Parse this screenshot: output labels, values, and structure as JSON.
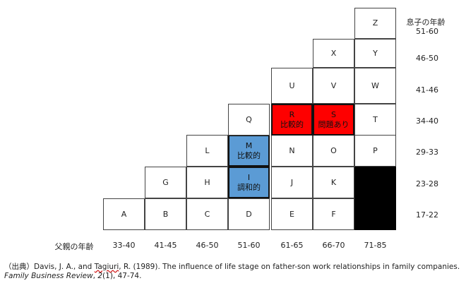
{
  "figure": {
    "corner_label": "息子の年齢",
    "son_age_rows": [
      "51-60",
      "46-50",
      "41-46",
      "34-40",
      "29-33",
      "23-28",
      "17-22"
    ],
    "father_label": "父親の年齢",
    "father_age_cols": [
      "33-40",
      "41-45",
      "46-50",
      "51-60",
      "61-65",
      "66-70",
      "71-85"
    ],
    "cells": {
      "A": {
        "letter": "A"
      },
      "B": {
        "letter": "B"
      },
      "C": {
        "letter": "C"
      },
      "D": {
        "letter": "D"
      },
      "E": {
        "letter": "E"
      },
      "F": {
        "letter": "F"
      },
      "G": {
        "letter": "G"
      },
      "H": {
        "letter": "H"
      },
      "I": {
        "letter": "I",
        "sub": "調和的",
        "color": "#5b9bd5"
      },
      "J": {
        "letter": "J"
      },
      "K": {
        "letter": "K"
      },
      "L": {
        "letter": "L"
      },
      "M": {
        "letter": "M",
        "sub": "比較的",
        "color": "#5b9bd5"
      },
      "N": {
        "letter": "N"
      },
      "O": {
        "letter": "O"
      },
      "P": {
        "letter": "P"
      },
      "Q": {
        "letter": "Q"
      },
      "R": {
        "letter": "R",
        "sub": "比較的",
        "color": "#fe0000"
      },
      "S": {
        "letter": "S",
        "sub": "問題あり",
        "color": "#fe0000"
      },
      "T": {
        "letter": "T"
      },
      "U": {
        "letter": "U"
      },
      "V": {
        "letter": "V"
      },
      "W": {
        "letter": "W"
      },
      "X": {
        "letter": "X"
      },
      "Y": {
        "letter": "Y"
      },
      "Z": {
        "letter": "Z"
      }
    },
    "shaded_color": "#000000"
  },
  "source": {
    "prefix": "（出典）",
    "authors_a": "Davis, J. A., and ",
    "authors_b": "Tagiuri",
    "authors_c": ", R. (1989). The influence of life stage on father-son work relationships in family companies. ",
    "journal": "Family Business Review",
    "volume": "2",
    "issue_pages": "(1), 47-74."
  }
}
